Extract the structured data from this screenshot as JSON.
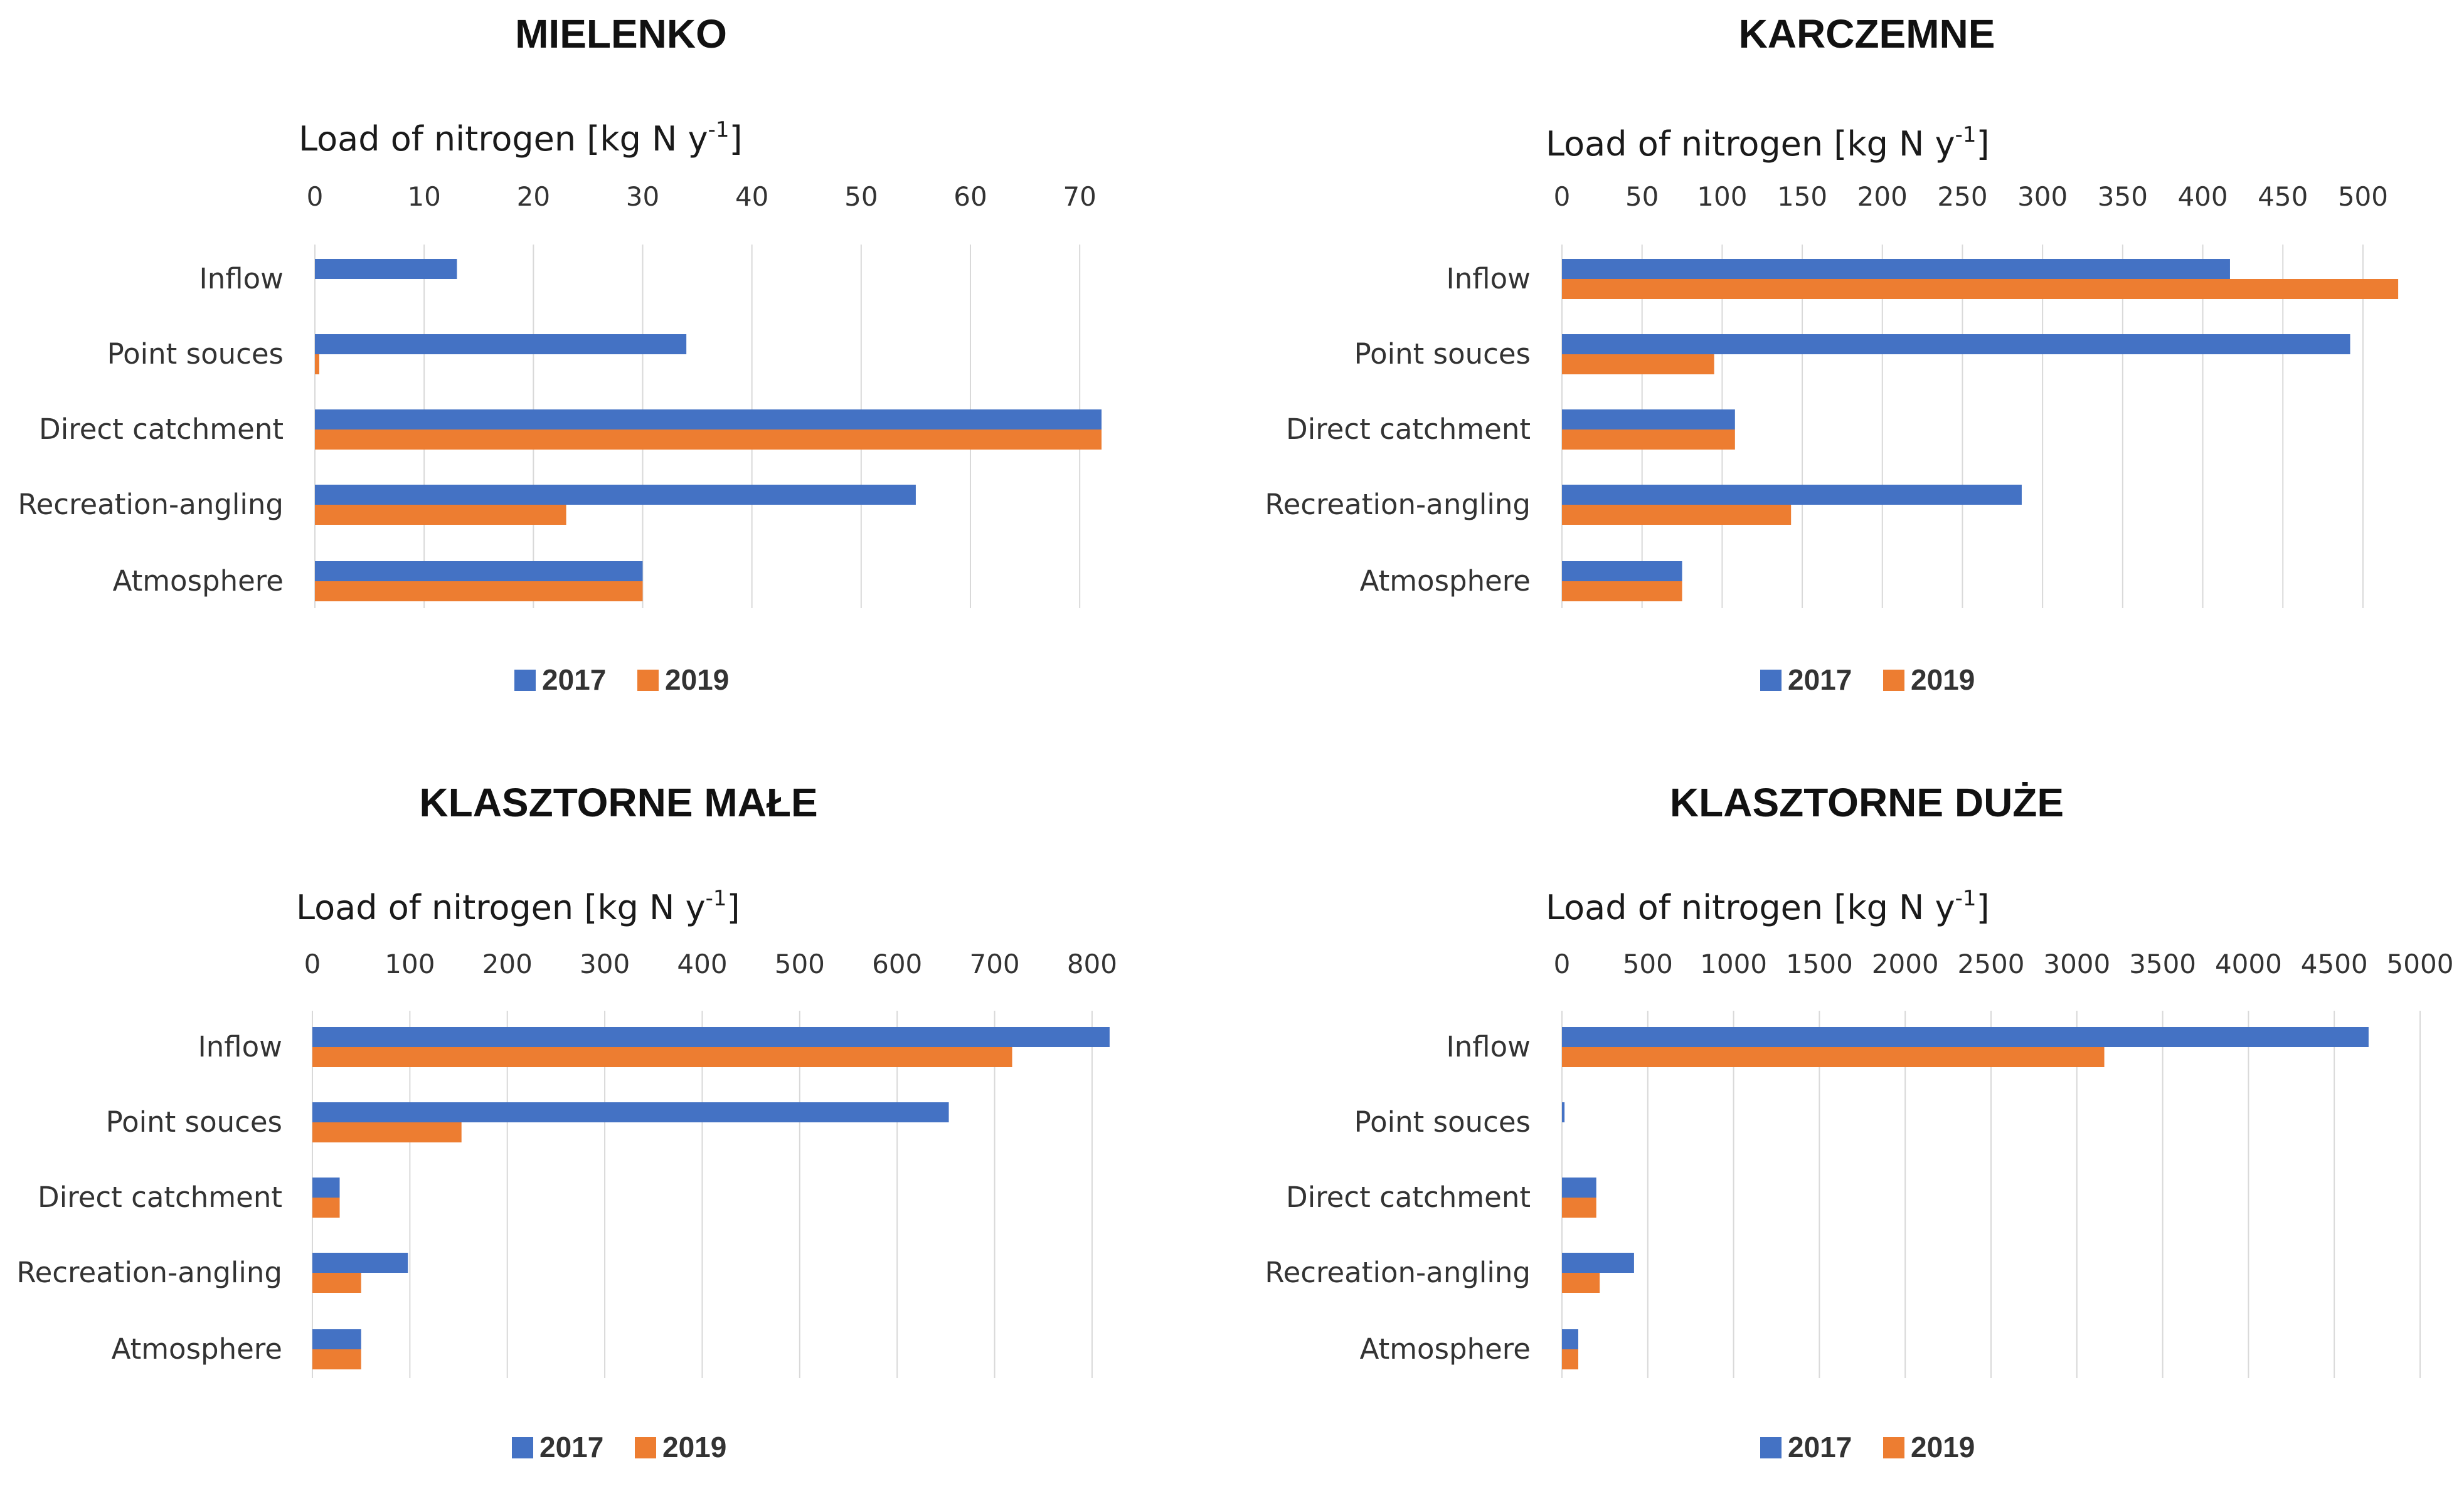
{
  "chart_data": [
    {
      "type": "bar",
      "orientation": "horizontal",
      "title": "MIELENKO",
      "xlabel": "Load of nitrogen [kg N y-1]",
      "xlabel_main": "Load of nitrogen [kg N y",
      "xlabel_sup": "-1",
      "xlabel_end": "]",
      "xlim": [
        0,
        72
      ],
      "xticks": [
        0,
        10,
        20,
        30,
        40,
        50,
        60,
        70
      ],
      "categories": [
        "Inflow",
        "Point souces",
        "Direct catchment",
        "Recreation-angling",
        "Atmosphere"
      ],
      "series": [
        {
          "name": "2017",
          "color": "#4472C4",
          "values": [
            13,
            34,
            72,
            55,
            30
          ]
        },
        {
          "name": "2019",
          "color": "#ED7D31",
          "values": [
            0,
            0.4,
            72,
            23,
            30
          ]
        }
      ],
      "legend": "bottom"
    },
    {
      "type": "bar",
      "orientation": "horizontal",
      "title": "KARCZEMNE",
      "xlabel": "Load of nitrogen [kg N y-1]",
      "xlabel_main": "Load of nitrogen [kg N y",
      "xlabel_sup": "-1",
      "xlabel_end": "]",
      "xlim": [
        0,
        520
      ],
      "xticks": [
        0,
        50,
        100,
        150,
        200,
        250,
        300,
        350,
        400,
        450,
        500
      ],
      "categories": [
        "Inflow",
        "Point souces",
        "Direct catchment",
        "Recreation-angling",
        "Atmosphere"
      ],
      "series": [
        {
          "name": "2017",
          "color": "#4472C4",
          "values": [
            417,
            492,
            108,
            287,
            75
          ]
        },
        {
          "name": "2019",
          "color": "#ED7D31",
          "values": [
            522,
            95,
            108,
            143,
            75
          ]
        }
      ],
      "legend": "bottom"
    },
    {
      "type": "bar",
      "orientation": "horizontal",
      "title": "KLASZTORNE MAŁE",
      "xlabel": "Load of nitrogen [kg N y-1]",
      "xlabel_main": "Load of nitrogen [kg N y",
      "xlabel_sup": "-1",
      "xlabel_end": "]",
      "xlim": [
        0,
        820
      ],
      "xticks": [
        0,
        100,
        200,
        300,
        400,
        500,
        600,
        700,
        800
      ],
      "categories": [
        "Inflow",
        "Point souces",
        "Direct catchment",
        "Recreation-angling",
        "Atmosphere"
      ],
      "series": [
        {
          "name": "2017",
          "color": "#4472C4",
          "values": [
            818,
            653,
            28,
            98,
            50
          ]
        },
        {
          "name": "2019",
          "color": "#ED7D31",
          "values": [
            718,
            153,
            28,
            50,
            50
          ]
        }
      ],
      "legend": "bottom"
    },
    {
      "type": "bar",
      "orientation": "horizontal",
      "title": "KLASZTORNE DUŻE",
      "xlabel": "Load of nitrogen [kg N y-1]",
      "xlabel_main": "Load of nitrogen [kg N y",
      "xlabel_sup": "-1",
      "xlabel_end": "]",
      "xlim": [
        0,
        5000
      ],
      "xticks": [
        0,
        500,
        1000,
        1500,
        2000,
        2500,
        3000,
        3500,
        4000,
        4500,
        5000
      ],
      "categories": [
        "Inflow",
        "Point souces",
        "Direct catchment",
        "Recreation-angling",
        "Atmosphere"
      ],
      "series": [
        {
          "name": "2017",
          "color": "#4472C4",
          "values": [
            4700,
            15,
            200,
            420,
            95
          ]
        },
        {
          "name": "2019",
          "color": "#ED7D31",
          "values": [
            3160,
            0,
            200,
            220,
            95
          ]
        }
      ],
      "legend": "bottom"
    }
  ]
}
